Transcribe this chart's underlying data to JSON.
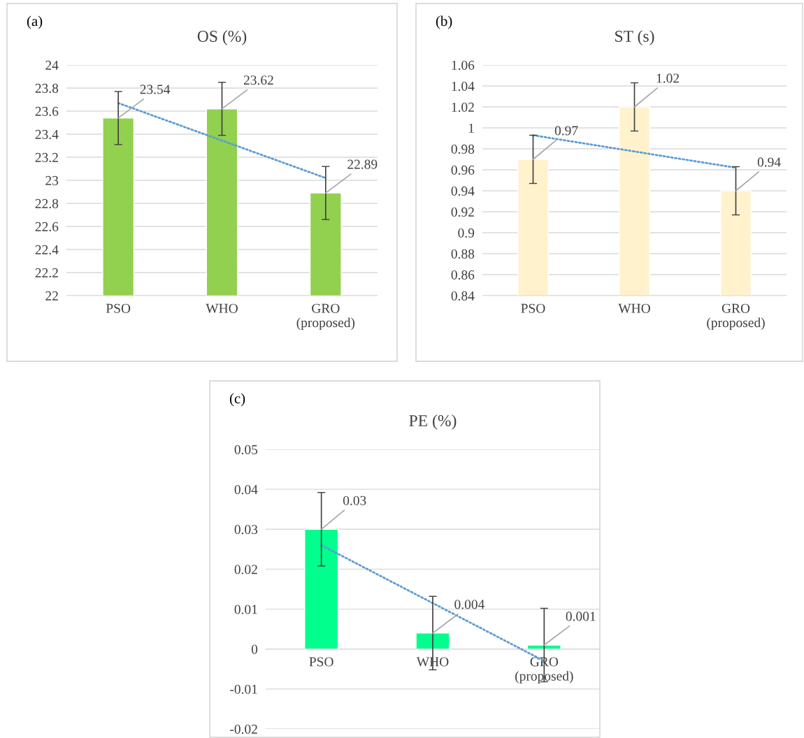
{
  "chart_data": [
    {
      "type": "bar",
      "title": "OS (%)",
      "annotations": [
        "(a)"
      ],
      "categories": [
        "PSO",
        "WHO",
        "GRO\n(proposed)"
      ],
      "series": [
        {
          "color": "#92d050",
          "values": [
            23.54,
            23.62,
            22.89
          ],
          "errors": [
            0.23,
            0.23,
            0.23
          ],
          "value_labels": [
            "23.54",
            "23.62",
            "22.89"
          ]
        },
        {
          "type": "line",
          "color": "#5b9bd5",
          "line_style": "dotted",
          "x": [
            "PSO",
            "GRO\n(proposed)"
          ],
          "values": [
            23.67,
            23.02
          ]
        }
      ],
      "ylim": [
        22,
        24
      ],
      "yticks": [
        22,
        22.2,
        22.4,
        22.6,
        22.8,
        23,
        23.2,
        23.4,
        23.6,
        23.8,
        24
      ],
      "grid": "y"
    },
    {
      "type": "bar",
      "title": "ST (s)",
      "annotations": [
        "(b)"
      ],
      "categories": [
        "PSO",
        "WHO",
        "GRO\n(proposed)"
      ],
      "series": [
        {
          "color": "#fff2cc",
          "values": [
            0.97,
            1.02,
            0.94
          ],
          "errors": [
            0.023,
            0.023,
            0.023
          ],
          "value_labels": [
            "0.97",
            "1.02",
            "0.94"
          ]
        },
        {
          "type": "line",
          "color": "#5b9bd5",
          "line_style": "dotted",
          "x": [
            "PSO",
            "GRO\n(proposed)"
          ],
          "values": [
            0.993,
            0.962
          ]
        }
      ],
      "ylim": [
        0.84,
        1.06
      ],
      "yticks": [
        0.84,
        0.86,
        0.88,
        0.9,
        0.92,
        0.94,
        0.96,
        0.98,
        1,
        1.02,
        1.04,
        1.06
      ],
      "grid": "y"
    },
    {
      "type": "bar",
      "title": "PE (%)",
      "annotations": [
        "(c)"
      ],
      "categories": [
        "PSO",
        "WHO",
        "GRO\n(proposed)"
      ],
      "series": [
        {
          "color": "#00ff8c",
          "values": [
            0.03,
            0.004,
            0.001
          ],
          "errors": [
            0.0092,
            0.0092,
            0.0092
          ],
          "value_labels": [
            "0.03",
            "0.004",
            "0.001"
          ]
        },
        {
          "type": "line",
          "color": "#5b9bd5",
          "line_style": "dotted",
          "x": [
            "PSO",
            "GRO\n(proposed)"
          ],
          "values": [
            0.026,
            -0.003
          ]
        }
      ],
      "ylim": [
        -0.02,
        0.05
      ],
      "yticks": [
        -0.02,
        -0.01,
        0,
        0.01,
        0.02,
        0.03,
        0.04,
        0.05
      ],
      "grid": "y"
    }
  ]
}
